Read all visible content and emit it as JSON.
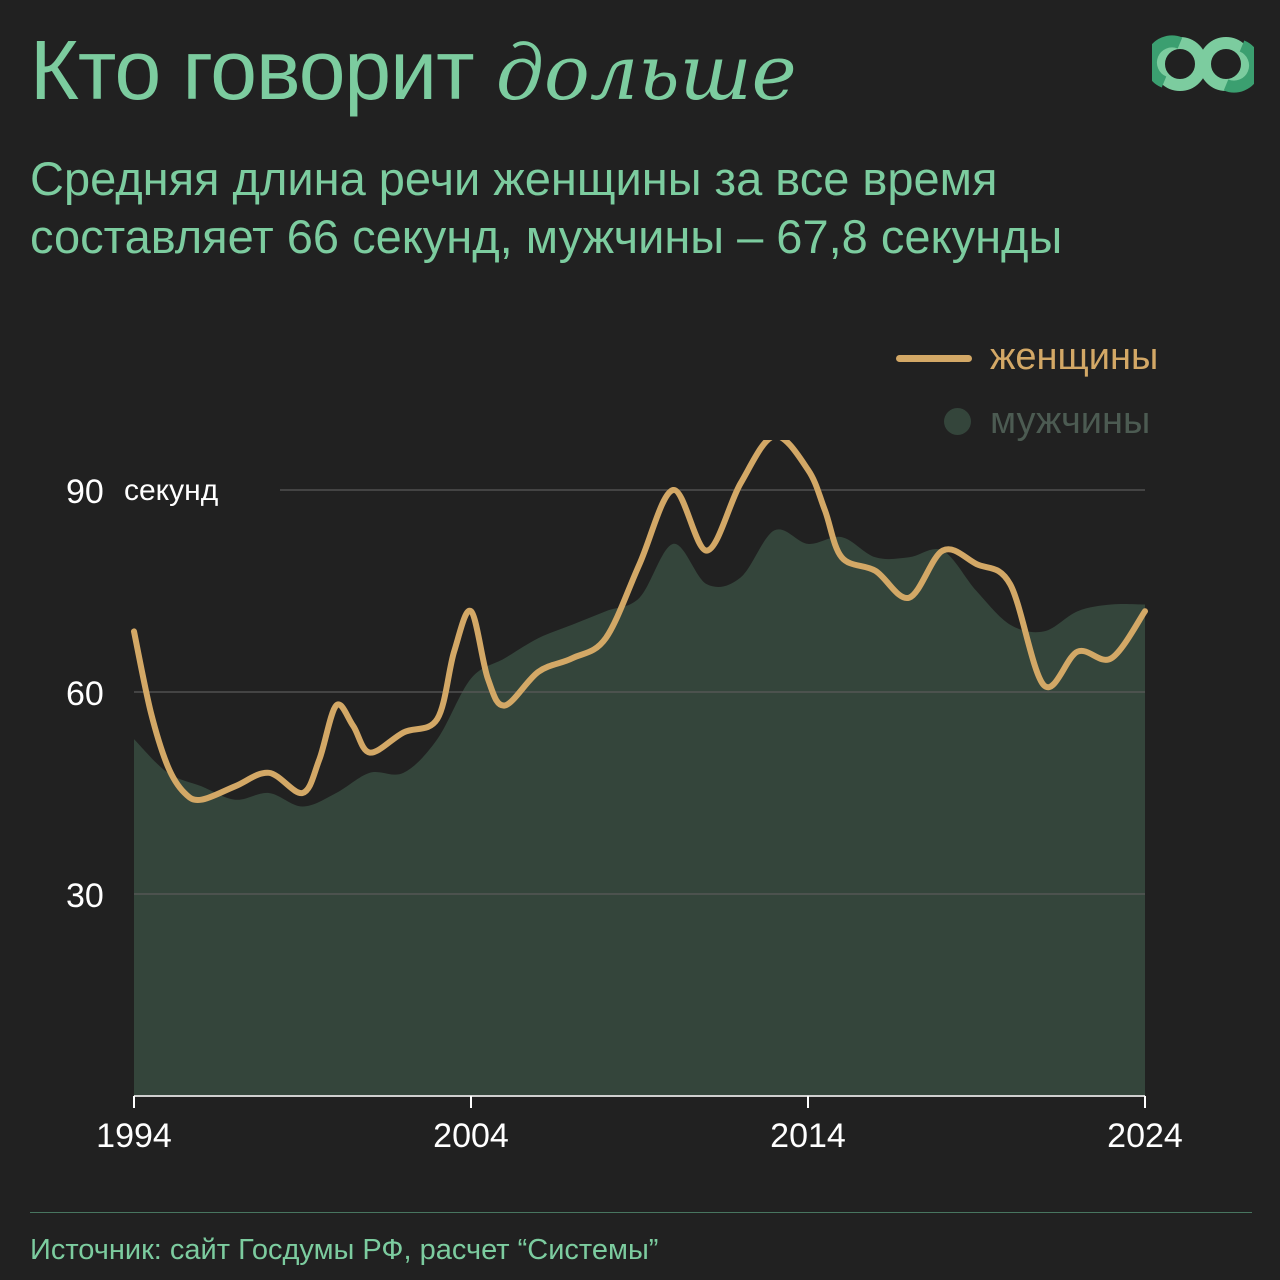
{
  "header": {
    "title_plain": "Кто говорит",
    "title_italic": "дольше",
    "subtitle": "Средняя длина речи женщины за все время составляет 66 секунд, мужчины – 67,8 секунды"
  },
  "legend": {
    "women": "женщины",
    "men": "мужчины"
  },
  "footer": {
    "source": "Источник: сайт Госдумы РФ, расчет “Системы”"
  },
  "colors": {
    "women_line": "#d3a866",
    "men_area": "#34453b",
    "accent": "#7ccc9f",
    "background": "#212121",
    "grid": "#5a5a5a"
  },
  "chart_data": {
    "type": "area",
    "ylabel": "секунд",
    "ylim": [
      0,
      90
    ],
    "yticks": [
      30,
      60,
      90
    ],
    "xlim": [
      1994,
      2024
    ],
    "xticks": [
      1994,
      2004,
      2014,
      2024
    ],
    "grid": true,
    "legend_position": "top-right",
    "series": [
      {
        "name": "женщины",
        "type": "line",
        "x": [
          1994,
          1994.5,
          1995,
          1995.5,
          1996,
          1997,
          1998,
          1999,
          1999.5,
          2000,
          2000.5,
          2001,
          2002,
          2003,
          2003.5,
          2004,
          2004.5,
          2005,
          2006,
          2007,
          2008,
          2009,
          2010,
          2011,
          2012,
          2013,
          2014,
          2014.5,
          2015,
          2016,
          2017,
          2018,
          2019,
          2020,
          2021,
          2022,
          2023,
          2024
        ],
        "y": [
          69,
          57,
          49,
          45,
          44,
          46,
          48,
          45,
          50,
          58,
          55,
          51,
          54,
          56,
          66,
          72,
          62,
          58,
          63,
          65,
          68,
          79,
          90,
          81,
          91,
          98,
          93,
          87,
          80,
          78,
          74,
          81,
          79,
          76,
          61,
          66,
          65,
          72
        ]
      },
      {
        "name": "мужчины",
        "type": "area",
        "x": [
          1994,
          1995,
          1996,
          1997,
          1998,
          1999,
          2000,
          2001,
          2002,
          2003,
          2004,
          2005,
          2006,
          2007,
          2008,
          2009,
          2010,
          2011,
          2012,
          2013,
          2014,
          2015,
          2016,
          2017,
          2018,
          2019,
          2020,
          2021,
          2022,
          2023,
          2024
        ],
        "y": [
          53,
          48,
          46,
          44,
          45,
          43,
          45,
          48,
          48,
          53,
          62,
          65,
          68,
          70,
          72,
          74,
          82,
          76,
          77,
          84,
          82,
          83,
          80,
          80,
          81,
          75,
          70,
          69,
          72,
          73,
          73
        ]
      }
    ]
  }
}
